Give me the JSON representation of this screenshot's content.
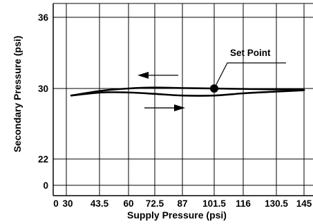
{
  "chart_data": {
    "type": "line",
    "xlabel": "Supply Pressure (psi)",
    "ylabel": "Secondary Pressure (psi)",
    "x_tick_labels": [
      "0",
      "30",
      "43.5",
      "60",
      "72.5",
      "87",
      "101.5",
      "116",
      "130.5",
      "145"
    ],
    "y_tick_labels": [
      "0",
      "22",
      "30",
      "36"
    ],
    "y_ticks": [
      0,
      22,
      30,
      36
    ],
    "grid": true,
    "series": [
      {
        "direction": "increasing",
        "points": [
          [
            32,
            29.2
          ],
          [
            45,
            29.75
          ],
          [
            60,
            30.0
          ],
          [
            72,
            30.1
          ],
          [
            87,
            30.05
          ],
          [
            101.5,
            30.0
          ],
          [
            116,
            29.95
          ],
          [
            130.5,
            29.9
          ],
          [
            145,
            29.85
          ]
        ]
      },
      {
        "direction": "decreasing",
        "points": [
          [
            32,
            29.2
          ],
          [
            45,
            29.55
          ],
          [
            60,
            29.55
          ],
          [
            72,
            29.4
          ],
          [
            87,
            29.2
          ],
          [
            101.5,
            29.2
          ],
          [
            116,
            29.45
          ],
          [
            130.5,
            29.65
          ],
          [
            145,
            29.8
          ]
        ]
      }
    ],
    "annotations": [
      {
        "text": "Set Point",
        "x": 101.5,
        "y": 30
      }
    ]
  }
}
